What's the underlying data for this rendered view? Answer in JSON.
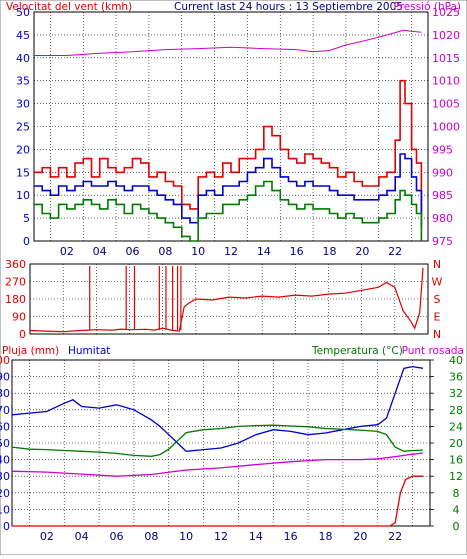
{
  "colors": {
    "red": "#e00000",
    "blue": "#0000cc",
    "green": "#007a00",
    "magenta": "#cc00cc",
    "axis": "#000000",
    "grid": "#000000"
  },
  "chart_data": [
    {
      "id": "wind",
      "type": "line",
      "title": "Current last 24 hours : 13 Septiembre 2005",
      "left_axis_label": "Velocitat del vent (kmh)",
      "right_axis_label": "Pressió (hPa)",
      "ylim_left": [
        0,
        50
      ],
      "yticks_left": [
        "0",
        "5",
        "10",
        "15",
        "20",
        "25",
        "30",
        "35",
        "40",
        "45",
        "50"
      ],
      "ylim_right": [
        975,
        1025
      ],
      "yticks_right": [
        "975",
        "980",
        "985",
        "990",
        "995",
        "1000",
        "1005",
        "1010",
        "1015",
        "1020",
        "1025"
      ],
      "xlim": [
        0,
        24
      ],
      "xticks": [
        "02",
        "04",
        "06",
        "08",
        "10",
        "12",
        "14",
        "16",
        "18",
        "20",
        "22"
      ],
      "xtick_values": [
        2,
        4,
        6,
        8,
        10,
        12,
        14,
        16,
        18,
        20,
        22
      ],
      "grid": true,
      "series": [
        {
          "role": "gust",
          "color_key": "red",
          "axis": "left",
          "x": [
            0,
            0.5,
            1,
            1.5,
            2,
            2.5,
            3,
            3.5,
            4,
            4.5,
            5,
            5.5,
            6,
            6.5,
            7,
            7.5,
            8,
            8.5,
            9,
            9.5,
            10,
            10.5,
            11,
            11.5,
            12,
            12.5,
            13,
            13.5,
            14,
            14.5,
            15,
            15.5,
            16,
            16.5,
            17,
            17.5,
            18,
            18.5,
            19,
            19.5,
            20,
            20.5,
            21,
            21.5,
            22,
            22.3,
            22.6,
            23,
            23.3,
            23.6
          ],
          "y": [
            15,
            16,
            14,
            16,
            14,
            17,
            18,
            14,
            18,
            16,
            15,
            16,
            18,
            17,
            14,
            15,
            13,
            12,
            8,
            7,
            14,
            15,
            14,
            17,
            15,
            18,
            18,
            20,
            25,
            23,
            20,
            18,
            17,
            19,
            18,
            17,
            16,
            14,
            15,
            13,
            12,
            12,
            14,
            15,
            22,
            35,
            30,
            20,
            17,
            6
          ]
        },
        {
          "role": "average",
          "color_key": "blue",
          "axis": "left",
          "x": [
            0,
            0.5,
            1,
            1.5,
            2,
            2.5,
            3,
            3.5,
            4,
            4.5,
            5,
            5.5,
            6,
            6.5,
            7,
            7.5,
            8,
            8.5,
            9,
            9.5,
            10,
            10.5,
            11,
            11.5,
            12,
            12.5,
            13,
            13.5,
            14,
            14.5,
            15,
            15.5,
            16,
            16.5,
            17,
            17.5,
            18,
            18.5,
            19,
            19.5,
            20,
            20.5,
            21,
            21.5,
            22,
            22.3,
            22.6,
            23,
            23.3,
            23.6
          ],
          "y": [
            12,
            11,
            10,
            12,
            11,
            12,
            13,
            12,
            12,
            13,
            12,
            11,
            12,
            12,
            11,
            10,
            9,
            8,
            5,
            4,
            10,
            11,
            10,
            12,
            12,
            13,
            15,
            16,
            18,
            16,
            14,
            13,
            12,
            13,
            12,
            12,
            11,
            10,
            10,
            9,
            9,
            9,
            10,
            11,
            14,
            19,
            18,
            14,
            11,
            3
          ]
        },
        {
          "role": "minimum",
          "color_key": "green",
          "axis": "left",
          "x": [
            0,
            0.5,
            1,
            1.5,
            2,
            2.5,
            3,
            3.5,
            4,
            4.5,
            5,
            5.5,
            6,
            6.5,
            7,
            7.5,
            8,
            8.5,
            9,
            9.5,
            10,
            10.5,
            11,
            11.5,
            12,
            12.5,
            13,
            13.5,
            14,
            14.5,
            15,
            15.5,
            16,
            16.5,
            17,
            17.5,
            18,
            18.5,
            19,
            19.5,
            20,
            20.5,
            21,
            21.5,
            22,
            22.3,
            22.6,
            23,
            23.3,
            23.6
          ],
          "y": [
            8,
            6,
            5,
            8,
            7,
            8,
            9,
            8,
            7,
            9,
            8,
            6,
            8,
            7,
            6,
            5,
            4,
            3,
            1,
            0,
            5,
            6,
            6,
            8,
            8,
            9,
            10,
            12,
            13,
            11,
            9,
            8,
            7,
            8,
            7,
            7,
            6,
            5,
            6,
            5,
            4,
            4,
            5,
            6,
            9,
            11,
            10,
            8,
            6,
            0
          ]
        },
        {
          "role": "pressure",
          "color_key": "magenta",
          "axis": "right",
          "x": [
            0,
            2,
            4,
            6,
            8,
            10,
            12,
            14,
            16,
            17,
            18,
            19,
            20,
            21,
            22,
            22.5,
            23,
            23.6
          ],
          "y": [
            1015.5,
            1015.5,
            1016,
            1016.3,
            1016.8,
            1017,
            1017.3,
            1017,
            1016.8,
            1016.3,
            1016.6,
            1017.8,
            1018.6,
            1019.5,
            1020.5,
            1021,
            1020.8,
            1020.6
          ]
        }
      ]
    },
    {
      "id": "direction",
      "type": "line",
      "ylim": [
        0,
        360
      ],
      "yticks_left": [
        "0",
        "90",
        "180",
        "270",
        "360"
      ],
      "yticks_right": [
        "N",
        "E",
        "S",
        "W",
        "N"
      ],
      "xlim": [
        0,
        24
      ],
      "grid": true,
      "spikes_x": [
        3.6,
        5.8,
        6.3,
        7.8,
        8.2,
        8.6,
        8.9,
        9.1
      ],
      "series": [
        {
          "role": "wind-direction",
          "color_key": "red",
          "x": [
            0,
            1,
            2,
            3,
            3.5,
            4,
            5,
            5.5,
            6,
            7,
            7.5,
            8,
            8.5,
            9,
            9.3,
            9.6,
            10,
            11,
            12,
            13,
            14,
            15,
            16,
            17,
            18,
            19,
            20,
            21,
            21.5,
            22,
            22.5,
            23,
            23.2,
            23.5,
            23.7
          ],
          "y": [
            18,
            15,
            12,
            18,
            20,
            22,
            20,
            25,
            22,
            24,
            20,
            30,
            20,
            15,
            140,
            160,
            180,
            175,
            190,
            185,
            195,
            190,
            200,
            195,
            205,
            210,
            225,
            240,
            265,
            240,
            120,
            60,
            30,
            110,
            340
          ]
        }
      ]
    },
    {
      "id": "humidity-temperature",
      "type": "line",
      "left_axis_label_rain": "Pluja (mm)",
      "left_axis_label_humidity": "Humitat",
      "right_axis_label_temperature": "Temperatura (°C)",
      "right_axis_label_dewpoint": "Punt rosada",
      "ylim_left": [
        0,
        100
      ],
      "yticks_left": [
        "0",
        "10",
        "20",
        "30",
        "40",
        "50",
        "60",
        "70",
        "80",
        "90",
        "100"
      ],
      "ylim_right": [
        0,
        40
      ],
      "yticks_right": [
        "0",
        "4",
        "8",
        "12",
        "16",
        "20",
        "24",
        "28",
        "32",
        "36",
        "40"
      ],
      "xlim": [
        0,
        24
      ],
      "xticks": [
        "02",
        "04",
        "06",
        "08",
        "10",
        "12",
        "14",
        "16",
        "18",
        "20",
        "22"
      ],
      "xtick_values": [
        2,
        4,
        6,
        8,
        10,
        12,
        14,
        16,
        18,
        20,
        22
      ],
      "grid": true,
      "series": [
        {
          "role": "humidity",
          "color_key": "blue",
          "axis": "left",
          "x": [
            0,
            1,
            2,
            3,
            3.5,
            4,
            5,
            6,
            7,
            8,
            8.5,
            9,
            9.5,
            10,
            11,
            12,
            13,
            14,
            15,
            16,
            17,
            18,
            19,
            20,
            21,
            21.5,
            22,
            22.5,
            23,
            23.6
          ],
          "y": [
            67,
            68,
            69,
            74,
            76,
            72,
            71,
            73,
            70,
            64,
            60,
            55,
            50,
            45,
            46,
            47,
            50,
            55,
            58,
            57,
            55,
            56,
            58,
            60,
            61,
            65,
            80,
            95,
            96,
            95
          ]
        },
        {
          "role": "temperature",
          "color_key": "green",
          "axis": "right",
          "x": [
            0,
            1,
            2,
            3,
            4,
            5,
            6,
            7,
            8,
            8.5,
            9,
            9.5,
            10,
            11,
            12,
            13,
            14,
            15,
            16,
            17,
            18,
            19,
            20,
            21,
            21.5,
            22,
            22.5,
            23,
            23.6
          ],
          "y": [
            19,
            18.5,
            18.4,
            18.2,
            18,
            17.8,
            17.5,
            17,
            16.8,
            17.2,
            18.5,
            20.5,
            22.5,
            23.2,
            23.5,
            24,
            24.2,
            24.3,
            24.1,
            23.9,
            23.5,
            23.3,
            23.1,
            22.8,
            22,
            19,
            18,
            18.2,
            18.3
          ]
        },
        {
          "role": "dew-point",
          "color_key": "magenta",
          "axis": "right",
          "x": [
            0,
            2,
            4,
            6,
            8,
            10,
            12,
            14,
            16,
            18,
            20,
            21,
            22,
            22.5,
            23,
            23.6
          ],
          "y": [
            13.2,
            13,
            12.5,
            12,
            12.4,
            13.5,
            14,
            14.8,
            15.5,
            16,
            16,
            16.2,
            16.7,
            17,
            17.3,
            17.6
          ]
        },
        {
          "role": "rain",
          "color_key": "red",
          "axis": "left",
          "x": [
            0,
            21.7,
            22,
            22.3,
            22.6,
            23,
            23.6
          ],
          "y": [
            0,
            0,
            2,
            20,
            28,
            30,
            30
          ]
        }
      ]
    }
  ]
}
